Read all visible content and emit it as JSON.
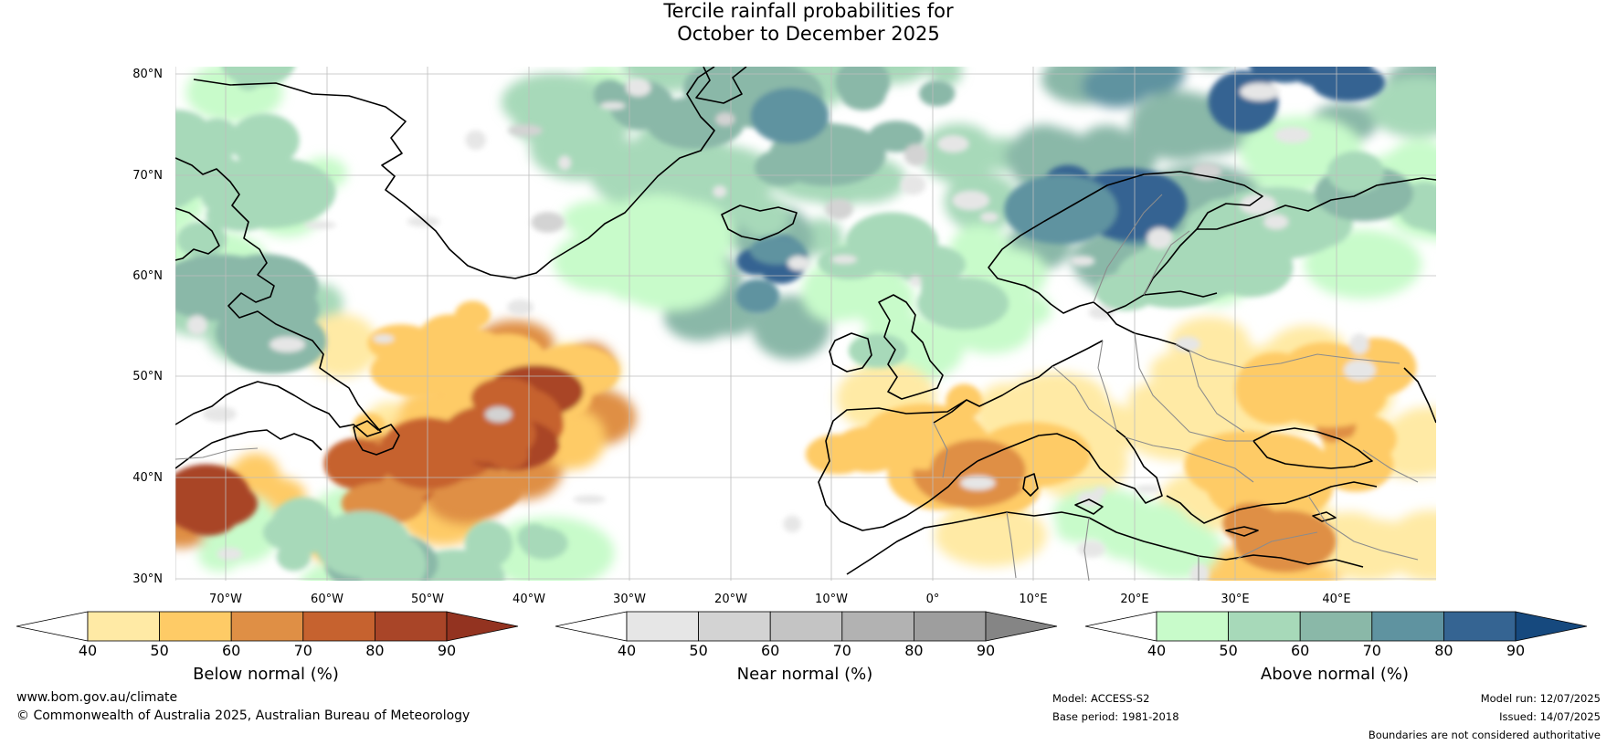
{
  "title": {
    "line1": "Tercile rainfall probabilities for",
    "line2": "October to December 2025"
  },
  "map": {
    "latitude_labels": [
      "80°N",
      "70°N",
      "60°N",
      "50°N",
      "40°N",
      "30°N"
    ],
    "longitude_labels": [
      "70°W",
      "60°W",
      "50°W",
      "40°W",
      "30°W",
      "20°W",
      "10°W",
      "0°",
      "10°E",
      "20°E",
      "30°E",
      "40°E"
    ],
    "colors": {
      "below_normal": [
        "#ffeaa5",
        "#fecb66",
        "#df8f45",
        "#c6622f",
        "#a94528",
        "#933320"
      ],
      "near_normal": [
        "#e6e6e6",
        "#d3d3d3",
        "#c4c4c4",
        "#b2b2b2",
        "#9e9e9e",
        "#858585"
      ],
      "above_normal": [
        "#c8fbca",
        "#a7d9b9",
        "#8ab8a8",
        "#5f93a0",
        "#356492",
        "#16497e"
      ],
      "coastline": "#000000",
      "borders": "#8c8c8c"
    }
  },
  "colorbars": [
    {
      "label": "Below normal (%)",
      "ticks": [
        "40",
        "50",
        "60",
        "70",
        "80",
        "90"
      ]
    },
    {
      "label": "Near normal (%)",
      "ticks": [
        "40",
        "50",
        "60",
        "70",
        "80",
        "90"
      ]
    },
    {
      "label": "Above normal (%)",
      "ticks": [
        "40",
        "50",
        "60",
        "70",
        "80",
        "90"
      ]
    }
  ],
  "footer": {
    "website": "www.bom.gov.au/climate",
    "copyright": "© Commonwealth of Australia 2025, Australian Bureau of Meteorology",
    "model": "Model: ACCESS-S2",
    "base_period": "Base period: 1981-2018",
    "model_run": "Model run: 12/07/2025",
    "issued": "Issued: 14/07/2025",
    "boundaries_note": "Boundaries are not considered authoritative"
  }
}
